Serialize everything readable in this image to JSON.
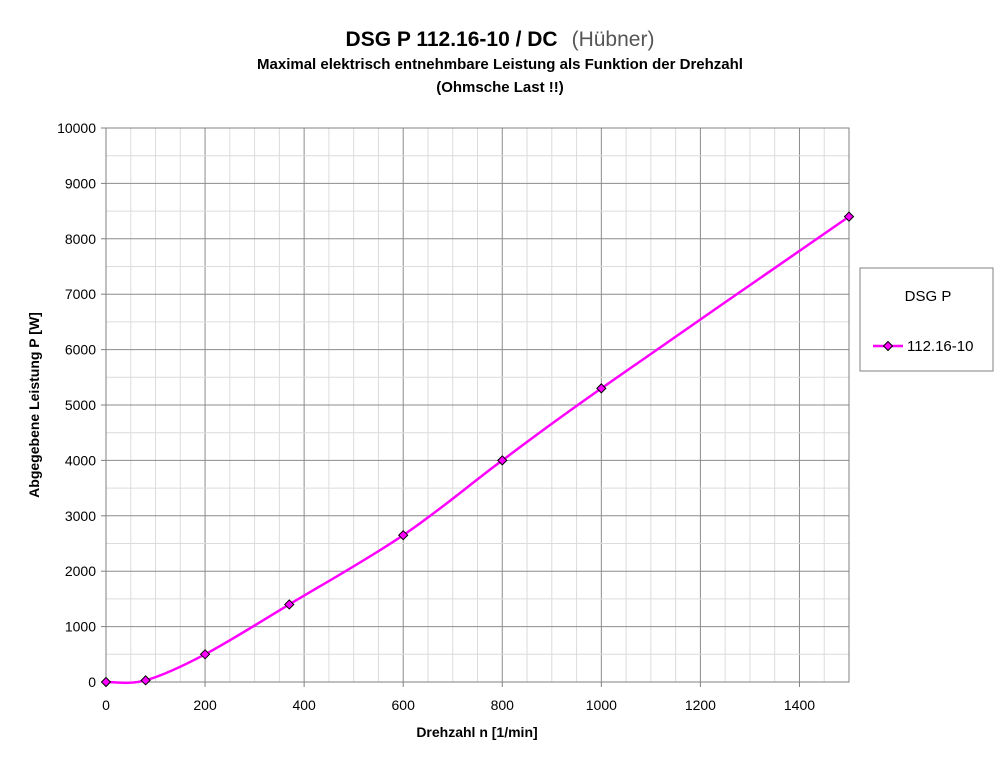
{
  "chart_data": {
    "type": "line",
    "title": "DSG P 112.16-10 / DC",
    "title_suffix": "(Hübner)",
    "subtitle_lines": [
      "Maximal elektrisch entnehmbare Leistung als Funktion der Drehzahl",
      "(Ohmsche Last !!)"
    ],
    "xlabel": "Drehzahl n [1/min]",
    "ylabel": "Abgegebene Leistung P [W]",
    "xlim": [
      0,
      1500
    ],
    "ylim": [
      0,
      10000
    ],
    "xticks": [
      0,
      200,
      400,
      600,
      800,
      1000,
      1200,
      1400
    ],
    "yticks": [
      0,
      1000,
      2000,
      3000,
      4000,
      5000,
      6000,
      7000,
      8000,
      9000,
      10000
    ],
    "x_tick_labels": [
      "0",
      "200",
      "400",
      "600",
      "800",
      "1000",
      "1200",
      "1400"
    ],
    "y_tick_labels": [
      "0",
      "1000",
      "2000",
      "3000",
      "4000",
      "5000",
      "6000",
      "7000",
      "8000",
      "9000",
      "10000"
    ],
    "grid": true,
    "legend_position": "right",
    "legend_title": "DSG P",
    "series": [
      {
        "name": "112.16-10",
        "color": "#ff00ff",
        "marker": "diamond",
        "x": [
          0,
          80,
          200,
          370,
          600,
          800,
          1000,
          1500
        ],
        "y": [
          0,
          30,
          500,
          1400,
          2650,
          4000,
          5300,
          8400
        ]
      }
    ]
  }
}
